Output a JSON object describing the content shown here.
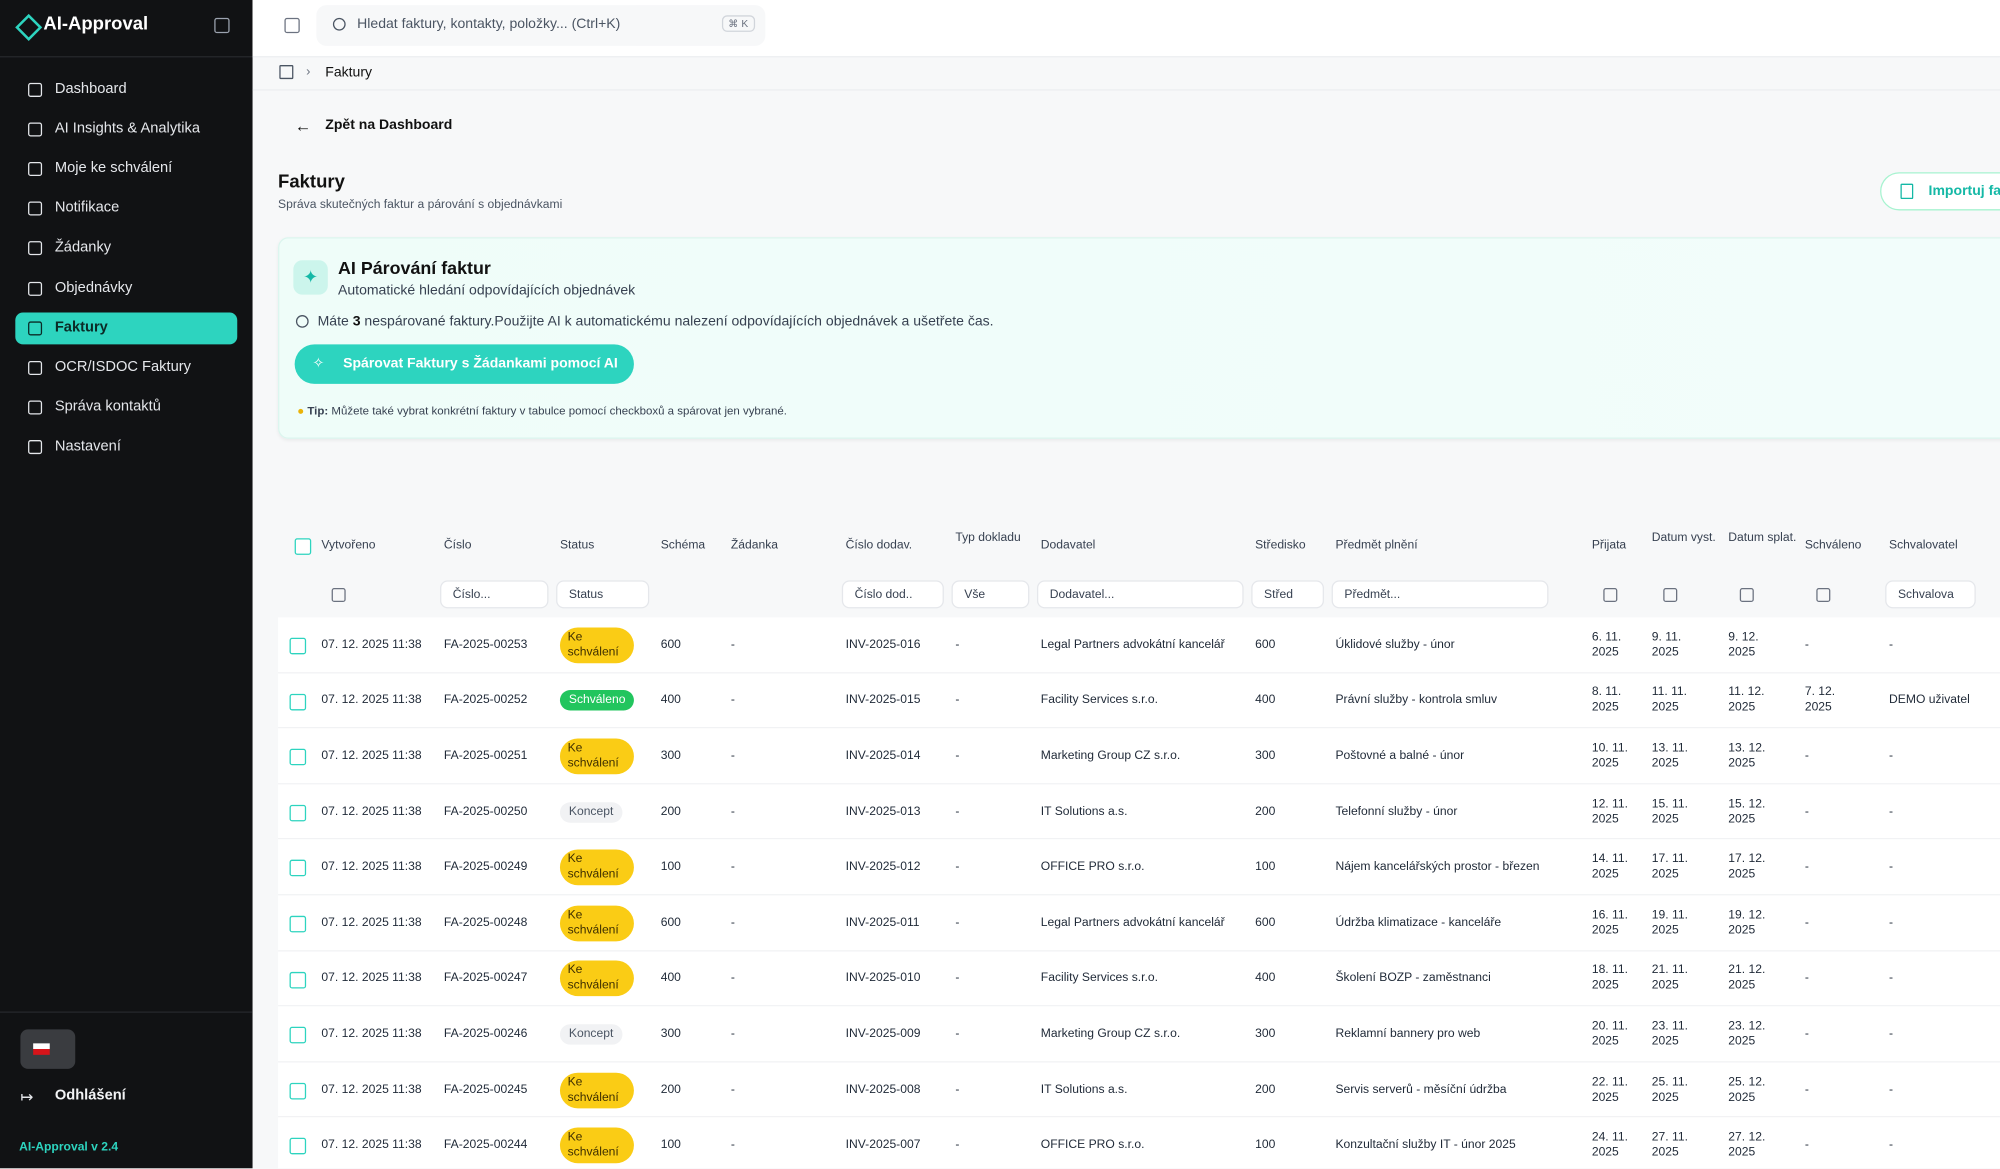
{
  "sidebar": {
    "brand": "AI-Approval",
    "nav": [
      "Dashboard",
      "AI Insights & Analytika",
      "Moje ke schválení",
      "Notifikace",
      "Žádanky",
      "Objednávky",
      "Faktury",
      "OCR/ISDOC Faktury",
      "Správa kontaktů",
      "Nastavení"
    ],
    "active": 6,
    "logout": "Odhlášení",
    "version": "AI-Approval v 2.4"
  },
  "topbar": {
    "search": "Hledat faktury, kontakty, položky... (Ctrl+K)",
    "shortcut": "⌘ K"
  },
  "breadcrumb": "Faktury",
  "back": "Zpět na Dashboard",
  "header": {
    "title": "Faktury",
    "subtitle": "Správa skutečných faktur a párování s objednávkami",
    "import": "Importuj fa"
  },
  "ai_card": {
    "title": "AI Párování faktur",
    "subtitle": "Automatické hledání odpovídajících objednávek",
    "info_before": "Máte",
    "count": 3,
    "info_after": "nespárované faktury.Použijte AI k automatickému nalezení odpovídajících objednávek a ušetřete čas.",
    "button": "Spárovat Faktury s Žádankami pomocí AI",
    "tip_label": "Tip:",
    "tip": "Můžete také vybrat konkrétní faktury v tabulce pomocí checkboxů a spárovat jen vybrané."
  },
  "table": {
    "headers": [
      "Vytvořeno",
      "Číslo",
      "Status",
      "Schéma",
      "Žádanka",
      "Číslo dodav.",
      "Typ dokladu",
      "Dodavatel",
      "Středisko",
      "Předmět plnění",
      "Přijata",
      "Datum vyst.",
      "Datum splat.",
      "Schváleno",
      "Schvalovatel"
    ],
    "filters": [
      null,
      "Číslo...",
      "Status",
      null,
      null,
      "Číslo dod..",
      "Vše",
      "Dodavatel...",
      "Střed",
      "Předmět...",
      null,
      null,
      null,
      null,
      "Schvalova"
    ],
    "rows": [
      [
        "07. 12. 2025 11:38",
        "FA-2025-00253",
        "Ke schválení",
        600,
        "-",
        "INV-2025-016",
        "-",
        "Legal Partners advokátní kancelář",
        600,
        "Úklidové služby - únor",
        "6. 11. 2025",
        "9. 11. 2025",
        "9. 12. 2025",
        "-",
        "-"
      ],
      [
        "07. 12. 2025 11:38",
        "FA-2025-00252",
        "Schváleno",
        400,
        "-",
        "INV-2025-015",
        "-",
        "Facility Services s.r.o.",
        400,
        "Právní služby - kontrola smluv",
        "8. 11. 2025",
        "11. 11. 2025",
        "11. 12. 2025",
        "7. 12. 2025",
        "DEMO uživatel"
      ],
      [
        "07. 12. 2025 11:38",
        "FA-2025-00251",
        "Ke schválení",
        300,
        "-",
        "INV-2025-014",
        "-",
        "Marketing Group CZ s.r.o.",
        300,
        "Poštovné a balné - únor",
        "10. 11. 2025",
        "13. 11. 2025",
        "13. 12. 2025",
        "-",
        "-"
      ],
      [
        "07. 12. 2025 11:38",
        "FA-2025-00250",
        "Koncept",
        200,
        "-",
        "INV-2025-013",
        "-",
        "IT Solutions a.s.",
        200,
        "Telefonní služby - únor",
        "12. 11. 2025",
        "15. 11. 2025",
        "15. 12. 2025",
        "-",
        "-"
      ],
      [
        "07. 12. 2025 11:38",
        "FA-2025-00249",
        "Ke schválení",
        100,
        "-",
        "INV-2025-012",
        "-",
        "OFFICE PRO s.r.o.",
        100,
        "Nájem kancelářských prostor - březen",
        "14. 11. 2025",
        "17. 11. 2025",
        "17. 12. 2025",
        "-",
        "-"
      ],
      [
        "07. 12. 2025 11:38",
        "FA-2025-00248",
        "Ke schválení",
        600,
        "-",
        "INV-2025-011",
        "-",
        "Legal Partners advokátní kancelář",
        600,
        "Údržba klimatizace - kanceláře",
        "16. 11. 2025",
        "19. 11. 2025",
        "19. 12. 2025",
        "-",
        "-"
      ],
      [
        "07. 12. 2025 11:38",
        "FA-2025-00247",
        "Ke schválení",
        400,
        "-",
        "INV-2025-010",
        "-",
        "Facility Services s.r.o.",
        400,
        "Školení BOZP - zaměstnanci",
        "18. 11. 2025",
        "21. 11. 2025",
        "21. 12. 2025",
        "-",
        "-"
      ],
      [
        "07. 12. 2025 11:38",
        "FA-2025-00246",
        "Koncept",
        300,
        "-",
        "INV-2025-009",
        "-",
        "Marketing Group CZ s.r.o.",
        300,
        "Reklamní bannery pro web",
        "20. 11. 2025",
        "23. 11. 2025",
        "23. 12. 2025",
        "-",
        "-"
      ],
      [
        "07. 12. 2025 11:38",
        "FA-2025-00245",
        "Ke schválení",
        200,
        "-",
        "INV-2025-008",
        "-",
        "IT Solutions a.s.",
        200,
        "Servis serverů - měsíční údržba",
        "22. 11. 2025",
        "25. 11. 2025",
        "25. 12. 2025",
        "-",
        "-"
      ],
      [
        "07. 12. 2025 11:38",
        "FA-2025-00244",
        "Ke schválení",
        100,
        "-",
        "INV-2025-007",
        "-",
        "OFFICE PRO s.r.o.",
        100,
        "Konzultační služby IT - únor 2025",
        "24. 11. 2025",
        "27. 11. 2025",
        "27. 12. 2025",
        "-",
        "-"
      ]
    ]
  }
}
